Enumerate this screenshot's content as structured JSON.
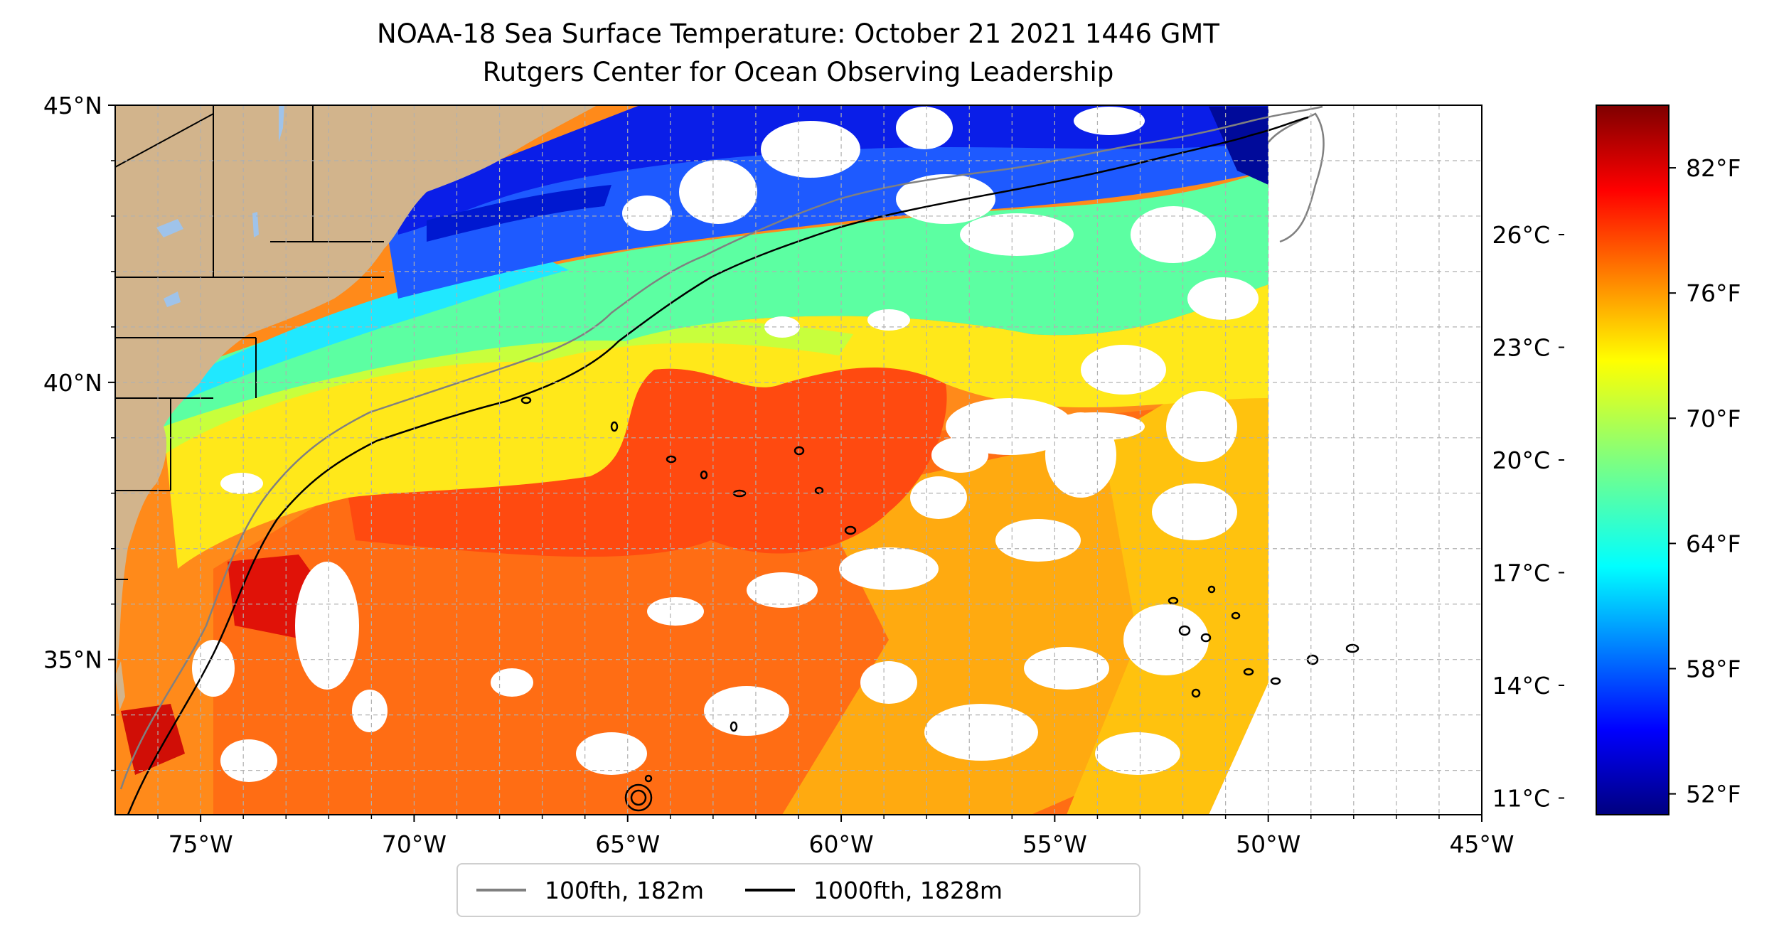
{
  "title": "NOAA-18 Sea Surface Temperature: October 21 2021 1446 GMT",
  "subtitle": "Rutgers Center for Ocean Observing Leadership",
  "map": {
    "lon_range": [
      -77,
      -45
    ],
    "lat_range": [
      32.2,
      45
    ],
    "x_ticks": [
      {
        "lon": -75,
        "label": "75°W"
      },
      {
        "lon": -70,
        "label": "70°W"
      },
      {
        "lon": -65,
        "label": "65°W"
      },
      {
        "lon": -60,
        "label": "60°W"
      },
      {
        "lon": -55,
        "label": "55°W"
      },
      {
        "lon": -50,
        "label": "50°W"
      },
      {
        "lon": -45,
        "label": "45°W"
      }
    ],
    "y_ticks": [
      {
        "lat": 45,
        "label": "45°N"
      },
      {
        "lat": 40,
        "label": "40°N"
      },
      {
        "lat": 35,
        "label": "35°N"
      }
    ],
    "grid": true,
    "colors": {
      "land": "#d2b48c",
      "lake": "#9fc3ea",
      "grid": "#b0b0b0"
    }
  },
  "colorbar": {
    "colormap": "jet",
    "range_f": [
      51,
      85
    ],
    "f_ticks": [
      {
        "value": 52,
        "label": "52°F"
      },
      {
        "value": 58,
        "label": "58°F"
      },
      {
        "value": 64,
        "label": "64°F"
      },
      {
        "value": 70,
        "label": "70°F"
      },
      {
        "value": 76,
        "label": "76°F"
      },
      {
        "value": 82,
        "label": "82°F"
      }
    ],
    "c_ticks": [
      {
        "value": 11,
        "label": "11°C"
      },
      {
        "value": 14,
        "label": "14°C"
      },
      {
        "value": 17,
        "label": "17°C"
      },
      {
        "value": 20,
        "label": "20°C"
      },
      {
        "value": 23,
        "label": "23°C"
      },
      {
        "value": 26,
        "label": "26°C"
      }
    ]
  },
  "legend": {
    "placement": "bottom-center",
    "items": [
      {
        "label": "100fth, 182m",
        "color": "#808080"
      },
      {
        "label": "1000fth, 1828m",
        "color": "#000000"
      }
    ]
  }
}
